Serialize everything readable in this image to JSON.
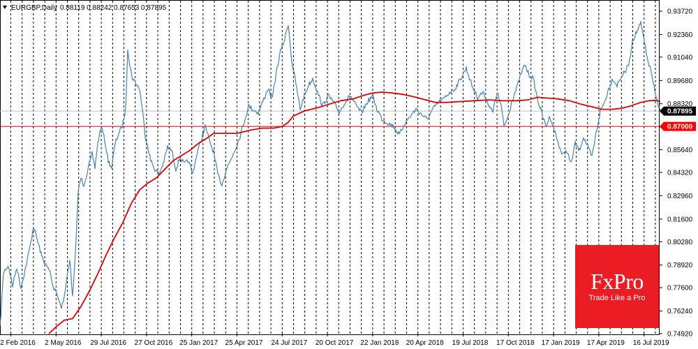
{
  "header": {
    "symbol": "EURGBP,Daily",
    "ohlc": "0.88119 0.88242 0.87653 0.87895"
  },
  "colors": {
    "price": "#4682b4",
    "ma": "#e00000",
    "level": "#cc0000",
    "grid": "#000000",
    "current_tag_bg": "#000000",
    "level_tag_bg": "#ff0000",
    "logo_bg": "#ea1c24"
  },
  "chart_data": {
    "type": "line",
    "title": "EURGBP,Daily",
    "ylim": [
      0.7492,
      0.9372
    ],
    "y_ticks": [
      "0.93720",
      "0.92360",
      "0.91040",
      "0.89680",
      "0.88320",
      "0.86960",
      "0.85640",
      "0.84320",
      "0.82960",
      "0.81600",
      "0.80280",
      "0.78920",
      "0.77600",
      "0.76240",
      "0.74920"
    ],
    "x_ticks": [
      "2 Feb 2016",
      "2 May 2016",
      "29 Jul 2016",
      "27 Oct 2016",
      "25 Jan 2017",
      "25 Apr 2017",
      "24 Jul 2017",
      "20 Oct 2017",
      "22 Jan 2018",
      "20 Apr 2018",
      "19 Jul 2018",
      "17 Oct 2018",
      "17 Jan 2019",
      "17 Apr 2019",
      "16 Jul 2019"
    ],
    "grid": "vertical dashed",
    "series": [
      {
        "type": "line",
        "points": [
          [
            0,
            0.7525
          ],
          [
            5,
            0.785
          ],
          [
            12,
            0.789
          ],
          [
            18,
            0.777
          ],
          [
            24,
            0.788
          ],
          [
            30,
            0.776
          ],
          [
            38,
            0.79
          ],
          [
            44,
            0.802
          ],
          [
            48,
            0.812
          ],
          [
            54,
            0.803
          ],
          [
            60,
            0.794
          ],
          [
            66,
            0.789
          ],
          [
            72,
            0.785
          ],
          [
            76,
            0.776
          ],
          [
            80,
            0.775
          ],
          [
            84,
            0.769
          ],
          [
            88,
            0.765
          ],
          [
            92,
            0.77
          ],
          [
            96,
            0.782
          ],
          [
            100,
            0.793
          ],
          [
            104,
            0.77
          ],
          [
            108,
            0.795
          ],
          [
            112,
            0.832
          ],
          [
            116,
            0.84
          ],
          [
            120,
            0.836
          ],
          [
            124,
            0.842
          ],
          [
            128,
            0.848
          ],
          [
            132,
            0.854
          ],
          [
            136,
            0.846
          ],
          [
            140,
            0.86
          ],
          [
            145,
            0.87
          ],
          [
            150,
            0.862
          ],
          [
            155,
            0.85
          ],
          [
            160,
            0.846
          ],
          [
            165,
            0.86
          ],
          [
            170,
            0.866
          ],
          [
            175,
            0.87
          ],
          [
            180,
            0.88
          ],
          [
            183,
            0.916
          ],
          [
            186,
            0.905
          ],
          [
            190,
            0.898
          ],
          [
            195,
            0.895
          ],
          [
            200,
            0.892
          ],
          [
            204,
            0.88
          ],
          [
            208,
            0.865
          ],
          [
            212,
            0.858
          ],
          [
            216,
            0.85
          ],
          [
            222,
            0.845
          ],
          [
            228,
            0.842
          ],
          [
            235,
            0.85
          ],
          [
            240,
            0.858
          ],
          [
            246,
            0.856
          ],
          [
            252,
            0.845
          ],
          [
            258,
            0.852
          ],
          [
            264,
            0.848
          ],
          [
            270,
            0.85
          ],
          [
            276,
            0.842
          ],
          [
            282,
            0.854
          ],
          [
            288,
            0.862
          ],
          [
            294,
            0.87
          ],
          [
            300,
            0.862
          ],
          [
            306,
            0.855
          ],
          [
            312,
            0.842
          ],
          [
            318,
            0.836
          ],
          [
            324,
            0.845
          ],
          [
            330,
            0.85
          ],
          [
            336,
            0.856
          ],
          [
            342,
            0.862
          ],
          [
            348,
            0.87
          ],
          [
            352,
            0.876
          ],
          [
            356,
            0.882
          ],
          [
            362,
            0.88
          ],
          [
            370,
            0.878
          ],
          [
            378,
            0.886
          ],
          [
            384,
            0.892
          ],
          [
            390,
            0.886
          ],
          [
            396,
            0.902
          ],
          [
            402,
            0.914
          ],
          [
            408,
            0.921
          ],
          [
            413,
            0.93
          ],
          [
            418,
            0.908
          ],
          [
            424,
            0.895
          ],
          [
            430,
            0.88
          ],
          [
            436,
            0.888
          ],
          [
            442,
            0.894
          ],
          [
            448,
            0.898
          ],
          [
            455,
            0.89
          ],
          [
            462,
            0.882
          ],
          [
            470,
            0.888
          ],
          [
            478,
            0.884
          ],
          [
            486,
            0.878
          ],
          [
            494,
            0.884
          ],
          [
            502,
            0.888
          ],
          [
            510,
            0.882
          ],
          [
            518,
            0.878
          ],
          [
            526,
            0.884
          ],
          [
            534,
            0.888
          ],
          [
            540,
            0.88
          ],
          [
            548,
            0.874
          ],
          [
            556,
            0.872
          ],
          [
            564,
            0.87
          ],
          [
            572,
            0.865
          ],
          [
            580,
            0.872
          ],
          [
            588,
            0.876
          ],
          [
            596,
            0.88
          ],
          [
            604,
            0.877
          ],
          [
            612,
            0.874
          ],
          [
            620,
            0.88
          ],
          [
            628,
            0.884
          ],
          [
            636,
            0.886
          ],
          [
            644,
            0.89
          ],
          [
            652,
            0.892
          ],
          [
            660,
            0.898
          ],
          [
            668,
            0.904
          ],
          [
            676,
            0.894
          ],
          [
            684,
            0.887
          ],
          [
            692,
            0.89
          ],
          [
            700,
            0.883
          ],
          [
            706,
            0.878
          ],
          [
            712,
            0.89
          ],
          [
            718,
            0.882
          ],
          [
            722,
            0.87
          ],
          [
            728,
            0.876
          ],
          [
            734,
            0.886
          ],
          [
            740,
            0.892
          ],
          [
            746,
            0.9
          ],
          [
            752,
            0.906
          ],
          [
            758,
            0.9
          ],
          [
            764,
            0.898
          ],
          [
            770,
            0.886
          ],
          [
            776,
            0.878
          ],
          [
            782,
            0.87
          ],
          [
            788,
            0.876
          ],
          [
            794,
            0.868
          ],
          [
            800,
            0.86
          ],
          [
            806,
            0.853
          ],
          [
            812,
            0.856
          ],
          [
            818,
            0.848
          ],
          [
            824,
            0.86
          ],
          [
            830,
            0.856
          ],
          [
            836,
            0.864
          ],
          [
            842,
            0.858
          ],
          [
            848,
            0.852
          ],
          [
            854,
            0.866
          ],
          [
            860,
            0.879
          ],
          [
            866,
            0.884
          ],
          [
            872,
            0.892
          ],
          [
            878,
            0.898
          ],
          [
            884,
            0.894
          ],
          [
            890,
            0.899
          ],
          [
            896,
            0.902
          ],
          [
            902,
            0.908
          ],
          [
            906,
            0.92
          ],
          [
            912,
            0.925
          ],
          [
            918,
            0.93
          ],
          [
            922,
            0.922
          ],
          [
            926,
            0.912
          ],
          [
            930,
            0.906
          ],
          [
            934,
            0.9
          ],
          [
            938,
            0.89
          ],
          [
            942,
            0.883
          ],
          [
            946,
            0.8789
          ]
        ]
      },
      {
        "type": "line",
        "points": [
          [
            70,
            0.7492
          ],
          [
            80,
            0.753
          ],
          [
            92,
            0.757
          ],
          [
            104,
            0.758
          ],
          [
            116,
            0.765
          ],
          [
            128,
            0.774
          ],
          [
            140,
            0.784
          ],
          [
            152,
            0.795
          ],
          [
            164,
            0.805
          ],
          [
            176,
            0.814
          ],
          [
            188,
            0.825
          ],
          [
            200,
            0.833
          ],
          [
            212,
            0.837
          ],
          [
            224,
            0.84
          ],
          [
            236,
            0.845
          ],
          [
            248,
            0.85
          ],
          [
            260,
            0.853
          ],
          [
            272,
            0.856
          ],
          [
            284,
            0.86
          ],
          [
            296,
            0.863
          ],
          [
            306,
            0.866
          ],
          [
            320,
            0.866
          ],
          [
            340,
            0.866
          ],
          [
            360,
            0.868
          ],
          [
            376,
            0.869
          ],
          [
            392,
            0.869
          ],
          [
            404,
            0.87
          ],
          [
            412,
            0.872
          ],
          [
            420,
            0.876
          ],
          [
            436,
            0.879
          ],
          [
            456,
            0.881
          ],
          [
            472,
            0.883
          ],
          [
            488,
            0.885
          ],
          [
            506,
            0.886
          ],
          [
            520,
            0.888
          ],
          [
            534,
            0.8895
          ],
          [
            548,
            0.89
          ],
          [
            562,
            0.8895
          ],
          [
            580,
            0.8885
          ],
          [
            596,
            0.887
          ],
          [
            610,
            0.8855
          ],
          [
            624,
            0.884
          ],
          [
            640,
            0.884
          ],
          [
            660,
            0.8845
          ],
          [
            680,
            0.885
          ],
          [
            700,
            0.8855
          ],
          [
            720,
            0.885
          ],
          [
            740,
            0.885
          ],
          [
            756,
            0.8855
          ],
          [
            770,
            0.887
          ],
          [
            786,
            0.8865
          ],
          [
            800,
            0.886
          ],
          [
            816,
            0.885
          ],
          [
            832,
            0.883
          ],
          [
            848,
            0.8815
          ],
          [
            862,
            0.88
          ],
          [
            876,
            0.88
          ],
          [
            890,
            0.8805
          ],
          [
            904,
            0.882
          ],
          [
            918,
            0.884
          ],
          [
            930,
            0.885
          ],
          [
            940,
            0.8852
          ],
          [
            946,
            0.8845
          ]
        ]
      }
    ],
    "level_line": 0.87,
    "current_price": 0.87895,
    "price_tags": [
      "0.87895",
      "0.87000"
    ]
  },
  "logo": {
    "brand": "FxPro",
    "tagline": "Trade Like a Pro"
  }
}
